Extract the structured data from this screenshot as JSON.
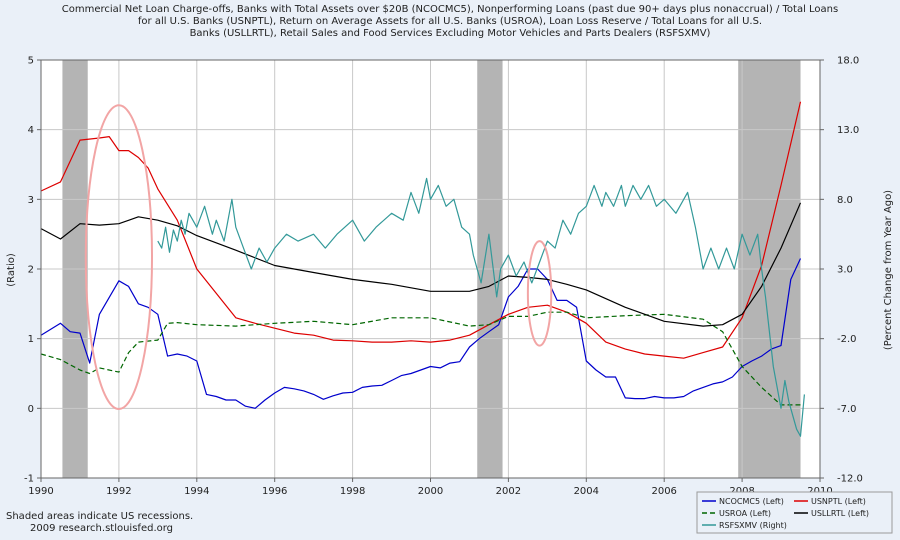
{
  "chart_data": {
    "type": "line",
    "title_lines": [
      "Commercial Net Loan Charge-offs, Banks with Total Assets over $20B (NCOCMC5), Nonperforming Loans (past due 90+ days plus nonaccrual) / Total Loans",
      "for all U.S. Banks (USNPTL), Return on Average Assets for all U.S. Banks (USROA), Loan Loss Reserve / Total Loans for all U.S.",
      "Banks (USLLRTL), Retail Sales and Food Services Excluding Motor Vehicles and Parts Dealers (RSFSXMV)"
    ],
    "ylabel_left": "(Ratio)",
    "ylabel_right": "(Percent Change from Year Ago)",
    "xlim": [
      1990,
      2010
    ],
    "ylim_left": [
      -1,
      5
    ],
    "ylim_right": [
      -12,
      18
    ],
    "x_ticks": [
      "1990",
      "1992",
      "1994",
      "1996",
      "1998",
      "2000",
      "2002",
      "2004",
      "2006",
      "2008",
      "2010"
    ],
    "y_ticks_left": [
      "-1",
      "0",
      "1",
      "2",
      "3",
      "4",
      "5"
    ],
    "y_ticks_right": [
      "-12.0",
      "-7.0",
      "-2.0",
      "3.0",
      "8.0",
      "13.0",
      "18.0"
    ],
    "grid": true,
    "recessions": [
      [
        1990.55,
        1991.2
      ],
      [
        2001.2,
        2001.85
      ],
      [
        2007.9,
        2009.5
      ]
    ],
    "ellipses": [
      {
        "center": [
          1992.0,
          2.17
        ],
        "radius_x": 0.85,
        "radius_y": 2.18
      },
      {
        "center": [
          2002.8,
          1.65
        ],
        "radius_x": 0.3,
        "radius_y": 0.75
      }
    ],
    "series": [
      {
        "name": "NCOCMC5 (Left)",
        "color": "#0000cc",
        "dash": "",
        "axis": "left",
        "x": [
          1990.0,
          1990.5,
          1990.75,
          1991.0,
          1991.25,
          1991.5,
          1992.0,
          1992.25,
          1992.5,
          1992.75,
          1993.0,
          1993.25,
          1993.5,
          1993.75,
          1994.0,
          1994.25,
          1994.5,
          1994.75,
          1995.0,
          1995.25,
          1995.5,
          1995.75,
          1996.0,
          1996.25,
          1996.5,
          1996.75,
          1997.0,
          1997.25,
          1997.5,
          1997.75,
          1998.0,
          1998.25,
          1998.5,
          1998.75,
          1999.0,
          1999.25,
          1999.5,
          1999.75,
          2000.0,
          2000.25,
          2000.5,
          2000.75,
          2001.0,
          2001.25,
          2001.5,
          2001.75,
          2002.0,
          2002.25,
          2002.5,
          2002.75,
          2003.0,
          2003.25,
          2003.5,
          2003.75,
          2004.0,
          2004.25,
          2004.5,
          2004.75,
          2005.0,
          2005.25,
          2005.5,
          2005.75,
          2006.0,
          2006.25,
          2006.5,
          2006.75,
          2007.0,
          2007.25,
          2007.5,
          2007.75,
          2008.0,
          2008.25,
          2008.5,
          2008.75,
          2009.0,
          2009.25,
          2009.5
        ],
        "values": [
          1.05,
          1.22,
          1.1,
          1.08,
          0.65,
          1.35,
          1.83,
          1.75,
          1.5,
          1.45,
          1.35,
          0.75,
          0.78,
          0.75,
          0.68,
          0.2,
          0.17,
          0.12,
          0.12,
          0.03,
          0.0,
          0.12,
          0.22,
          0.3,
          0.28,
          0.25,
          0.2,
          0.13,
          0.18,
          0.22,
          0.23,
          0.3,
          0.32,
          0.33,
          0.4,
          0.47,
          0.5,
          0.55,
          0.6,
          0.58,
          0.65,
          0.67,
          0.88,
          1.0,
          1.1,
          1.2,
          1.6,
          1.75,
          2.0,
          2.0,
          1.85,
          1.55,
          1.55,
          1.45,
          0.68,
          0.55,
          0.45,
          0.45,
          0.15,
          0.14,
          0.14,
          0.17,
          0.15,
          0.15,
          0.17,
          0.25,
          0.3,
          0.35,
          0.38,
          0.45,
          0.6,
          0.68,
          0.75,
          0.85,
          0.9,
          1.85,
          2.15
        ]
      },
      {
        "name": "USNPTL (Left)",
        "color": "#dd0000",
        "dash": "",
        "axis": "left",
        "x": [
          1990.0,
          1990.5,
          1991.0,
          1991.5,
          1991.75,
          1992.0,
          1992.25,
          1992.5,
          1992.75,
          1993.0,
          1993.5,
          1994.0,
          1994.5,
          1995.0,
          1995.5,
          1996.0,
          1996.5,
          1997.0,
          1997.5,
          1998.0,
          1998.5,
          1999.0,
          1999.5,
          2000.0,
          2000.5,
          2001.0,
          2001.5,
          2002.0,
          2002.5,
          2003.0,
          2003.5,
          2004.0,
          2004.5,
          2005.0,
          2005.5,
          2006.0,
          2006.5,
          2007.0,
          2007.5,
          2008.0,
          2008.5,
          2009.0,
          2009.5
        ],
        "values": [
          3.12,
          3.25,
          3.85,
          3.88,
          3.9,
          3.7,
          3.7,
          3.6,
          3.45,
          3.15,
          2.7,
          2.0,
          1.65,
          1.3,
          1.22,
          1.15,
          1.08,
          1.05,
          0.98,
          0.97,
          0.95,
          0.95,
          0.97,
          0.95,
          0.98,
          1.05,
          1.2,
          1.35,
          1.45,
          1.48,
          1.38,
          1.22,
          0.95,
          0.85,
          0.78,
          0.75,
          0.72,
          0.8,
          0.88,
          1.3,
          2.05,
          3.2,
          4.4
        ]
      },
      {
        "name": "USROA (Left)",
        "color": "#006600",
        "dash": "5,3",
        "axis": "left",
        "x": [
          1990.0,
          1990.5,
          1991.0,
          1991.25,
          1991.5,
          1992.0,
          1992.25,
          1992.5,
          1993.0,
          1993.25,
          1993.5,
          1994.0,
          1995.0,
          1996.0,
          1997.0,
          1998.0,
          1999.0,
          2000.0,
          2001.0,
          2001.5,
          2002.0,
          2002.5,
          2003.0,
          2003.5,
          2004.0,
          2005.0,
          2006.0,
          2007.0,
          2007.5,
          2008.0,
          2008.5,
          2009.0,
          2009.5
        ],
        "values": [
          0.78,
          0.7,
          0.55,
          0.5,
          0.58,
          0.52,
          0.8,
          0.95,
          0.98,
          1.22,
          1.23,
          1.2,
          1.18,
          1.22,
          1.25,
          1.2,
          1.3,
          1.3,
          1.18,
          1.2,
          1.32,
          1.32,
          1.38,
          1.38,
          1.3,
          1.33,
          1.35,
          1.28,
          1.1,
          0.6,
          0.3,
          0.05,
          0.05
        ]
      },
      {
        "name": "USLLRTL (Left)",
        "color": "#000000",
        "dash": "",
        "axis": "left",
        "x": [
          1990.0,
          1990.5,
          1991.0,
          1991.5,
          1992.0,
          1992.5,
          1993.0,
          1993.5,
          1994.0,
          1995.0,
          1996.0,
          1997.0,
          1998.0,
          1999.0,
          2000.0,
          2001.0,
          2001.5,
          2002.0,
          2002.5,
          2003.0,
          2003.5,
          2004.0,
          2005.0,
          2006.0,
          2007.0,
          2007.5,
          2008.0,
          2008.5,
          2009.0,
          2009.5
        ],
        "values": [
          2.58,
          2.43,
          2.65,
          2.63,
          2.65,
          2.75,
          2.7,
          2.62,
          2.48,
          2.27,
          2.05,
          1.95,
          1.85,
          1.78,
          1.68,
          1.68,
          1.75,
          1.9,
          1.88,
          1.85,
          1.78,
          1.7,
          1.45,
          1.25,
          1.18,
          1.2,
          1.35,
          1.75,
          2.3,
          2.95
        ]
      },
      {
        "name": "RSFSXMV (Right)",
        "color": "#339999",
        "dash": "",
        "axis": "right",
        "x": [
          1993.0,
          1993.1,
          1993.2,
          1993.3,
          1993.4,
          1993.5,
          1993.6,
          1993.7,
          1993.8,
          1994.0,
          1994.2,
          1994.4,
          1994.5,
          1994.7,
          1994.9,
          1995.0,
          1995.2,
          1995.4,
          1995.6,
          1995.8,
          1996.0,
          1996.3,
          1996.6,
          1997.0,
          1997.3,
          1997.6,
          1998.0,
          1998.3,
          1998.6,
          1999.0,
          1999.3,
          1999.5,
          1999.7,
          1999.9,
          2000.0,
          2000.2,
          2000.4,
          2000.6,
          2000.8,
          2001.0,
          2001.1,
          2001.3,
          2001.5,
          2001.7,
          2001.8,
          2002.0,
          2002.2,
          2002.4,
          2002.6,
          2002.8,
          2003.0,
          2003.2,
          2003.4,
          2003.6,
          2003.8,
          2004.0,
          2004.2,
          2004.4,
          2004.5,
          2004.7,
          2004.9,
          2005.0,
          2005.2,
          2005.4,
          2005.6,
          2005.8,
          2006.0,
          2006.3,
          2006.6,
          2006.8,
          2007.0,
          2007.2,
          2007.4,
          2007.6,
          2007.8,
          2008.0,
          2008.2,
          2008.4,
          2008.5,
          2008.6,
          2008.8,
          2009.0,
          2009.1,
          2009.2,
          2009.3,
          2009.4,
          2009.5,
          2009.6
        ],
        "values": [
          5.0,
          4.5,
          6.0,
          4.2,
          5.8,
          5.0,
          6.5,
          5.5,
          7.0,
          6.0,
          7.5,
          5.5,
          6.5,
          5.0,
          8.0,
          6.0,
          4.5,
          3.0,
          4.5,
          3.5,
          4.5,
          5.5,
          5.0,
          5.5,
          4.5,
          5.5,
          6.5,
          5.0,
          6.0,
          7.0,
          6.5,
          8.5,
          7.0,
          9.5,
          8.0,
          9.0,
          7.5,
          8.0,
          6.0,
          5.5,
          4.0,
          2.0,
          5.5,
          1.0,
          3.0,
          4.0,
          2.5,
          3.5,
          2.0,
          3.5,
          5.0,
          4.5,
          6.5,
          5.5,
          7.0,
          7.5,
          9.0,
          7.5,
          8.5,
          7.5,
          9.0,
          7.5,
          9.0,
          8.0,
          9.0,
          7.5,
          8.0,
          7.0,
          8.5,
          6.0,
          3.0,
          4.5,
          3.0,
          4.5,
          3.0,
          5.5,
          4.0,
          5.5,
          3.0,
          1.0,
          -4.0,
          -7.0,
          -5.0,
          -6.5,
          -7.5,
          -8.5,
          -9.0,
          -6.0
        ]
      }
    ]
  },
  "footer": {
    "line1": "Shaded areas indicate US recessions.",
    "line2": "2009 research.stlouisfed.org"
  },
  "legend": {
    "items": [
      "NCOCMC5 (Left)",
      "USNPTL (Left)",
      "USROA (Left)",
      "USLLRTL (Left)",
      "RSFSXMV (Right)"
    ]
  },
  "colors": {
    "background": "#eaf0f8",
    "plot": "#ffffff",
    "recession": "#b4b4b4",
    "ellipse": "#f2a5a5",
    "grid": "#c8c8c8"
  }
}
